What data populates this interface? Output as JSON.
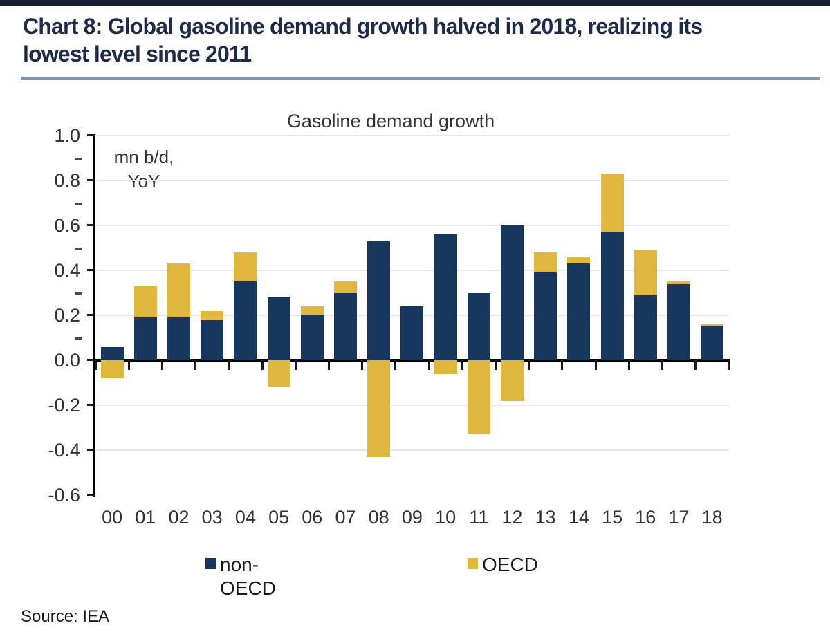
{
  "report": {
    "title_line1": "Chart 8: Global gasoline demand growth halved in 2018, realizing its",
    "title_line2": "lowest level since 2011"
  },
  "source": {
    "text": "Source: IEA"
  },
  "colors": {
    "non_oecd": "#17375E",
    "oecd": "#E0B83F",
    "title_navy": "#1E2A47",
    "top_bar": "#131C33",
    "title_rule": "#7E93AA",
    "gridline": "#E7E7E7",
    "axis": "#000000",
    "tick_label": "#333333"
  },
  "chart_data": {
    "type": "bar",
    "stacked": true,
    "title": "Gasoline demand growth",
    "unit_annotation": [
      "mn b/d,",
      "YoY"
    ],
    "categories": [
      "00",
      "01",
      "02",
      "03",
      "04",
      "05",
      "06",
      "07",
      "08",
      "09",
      "10",
      "11",
      "12",
      "13",
      "14",
      "15",
      "16",
      "17",
      "18"
    ],
    "series": [
      {
        "name": "non-OECD",
        "color": "#17375E",
        "values": [
          0.06,
          0.19,
          0.19,
          0.18,
          0.35,
          0.28,
          0.2,
          0.3,
          0.53,
          0.24,
          0.56,
          0.3,
          0.6,
          0.39,
          0.43,
          0.57,
          0.29,
          0.34,
          0.15
        ]
      },
      {
        "name": "OECD",
        "color": "#E0B83F",
        "values": [
          -0.08,
          0.14,
          0.24,
          0.04,
          0.13,
          -0.12,
          0.04,
          0.05,
          -0.43,
          0.0,
          -0.06,
          -0.33,
          -0.18,
          0.09,
          0.03,
          0.26,
          0.2,
          0.01,
          0.01
        ]
      }
    ],
    "ylim": [
      -0.6,
      1.0
    ],
    "y_tick_values": [
      1.0,
      0.8,
      0.6,
      0.4,
      0.2,
      0.0,
      -0.2,
      -0.4,
      -0.6
    ],
    "y_tick_labels": [
      "1.0",
      "0.8",
      "0.6",
      "0.4",
      "0.2",
      "0.0",
      "-0.2",
      "-0.4",
      "-0.6"
    ],
    "y_minor_tick_values": [
      0.9,
      0.7,
      0.5,
      0.3,
      0.1
    ],
    "grid": true,
    "legend_position": "bottom"
  }
}
